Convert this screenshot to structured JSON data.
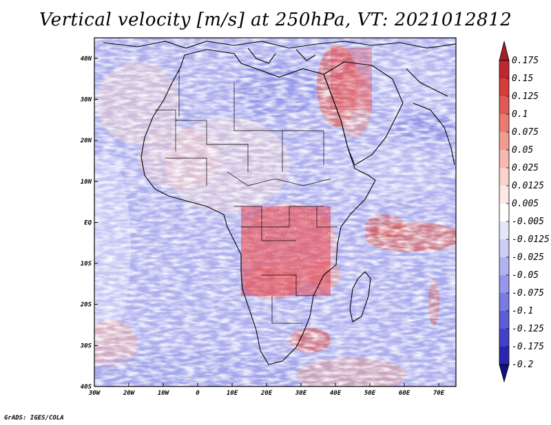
{
  "title": "Vertical velocity [m/s] at 250hPa, VT: 2021012812",
  "footer": "GrADS: IGES/COLA",
  "map": {
    "lon_range": [
      -30,
      75
    ],
    "lat_range": [
      -40,
      45
    ],
    "lon_ticks": [
      {
        "value": -30,
        "label": "30W"
      },
      {
        "value": -20,
        "label": "20W"
      },
      {
        "value": -10,
        "label": "10W"
      },
      {
        "value": 0,
        "label": "0"
      },
      {
        "value": 10,
        "label": "10E"
      },
      {
        "value": 20,
        "label": "20E"
      },
      {
        "value": 30,
        "label": "30E"
      },
      {
        "value": 40,
        "label": "40E"
      },
      {
        "value": 50,
        "label": "50E"
      },
      {
        "value": 60,
        "label": "60E"
      },
      {
        "value": 70,
        "label": "70E"
      }
    ],
    "lat_ticks": [
      {
        "value": 40,
        "label": "40N"
      },
      {
        "value": 30,
        "label": "30N"
      },
      {
        "value": 20,
        "label": "20N"
      },
      {
        "value": 10,
        "label": "10N"
      },
      {
        "value": 0,
        "label": "EQ"
      },
      {
        "value": -10,
        "label": "10S"
      },
      {
        "value": -20,
        "label": "20S"
      },
      {
        "value": -30,
        "label": "30S"
      },
      {
        "value": -40,
        "label": "40S"
      }
    ]
  },
  "colorbar": {
    "levels": [
      {
        "label": "0.175",
        "color": "#c0272d"
      },
      {
        "label": "0.15",
        "color": "#d63c3c"
      },
      {
        "label": "0.125",
        "color": "#e05a55"
      },
      {
        "label": "0.1",
        "color": "#ea7b73"
      },
      {
        "label": "0.075",
        "color": "#f29b92"
      },
      {
        "label": "0.05",
        "color": "#f7b8b0"
      },
      {
        "label": "0.025",
        "color": "#fbd3cd"
      },
      {
        "label": "0.0125",
        "color": "#fde8e5"
      },
      {
        "label": "0.005",
        "color": "#ffffff"
      },
      {
        "label": "-0.005",
        "color": "#e6e6fb"
      },
      {
        "label": "-0.0125",
        "color": "#cdcdf6"
      },
      {
        "label": "-0.025",
        "color": "#b2b2f0"
      },
      {
        "label": "-0.05",
        "color": "#9696ea"
      },
      {
        "label": "-0.075",
        "color": "#7a7ae2"
      },
      {
        "label": "-0.1",
        "color": "#5d5dd8"
      },
      {
        "label": "-0.125",
        "color": "#4040c9"
      },
      {
        "label": "-0.175",
        "color": "#2a25b0"
      },
      {
        "label": "-0.2",
        "color": "#1a1896"
      }
    ],
    "top_color": "#a71d23",
    "bottom_color": "#13117e"
  }
}
